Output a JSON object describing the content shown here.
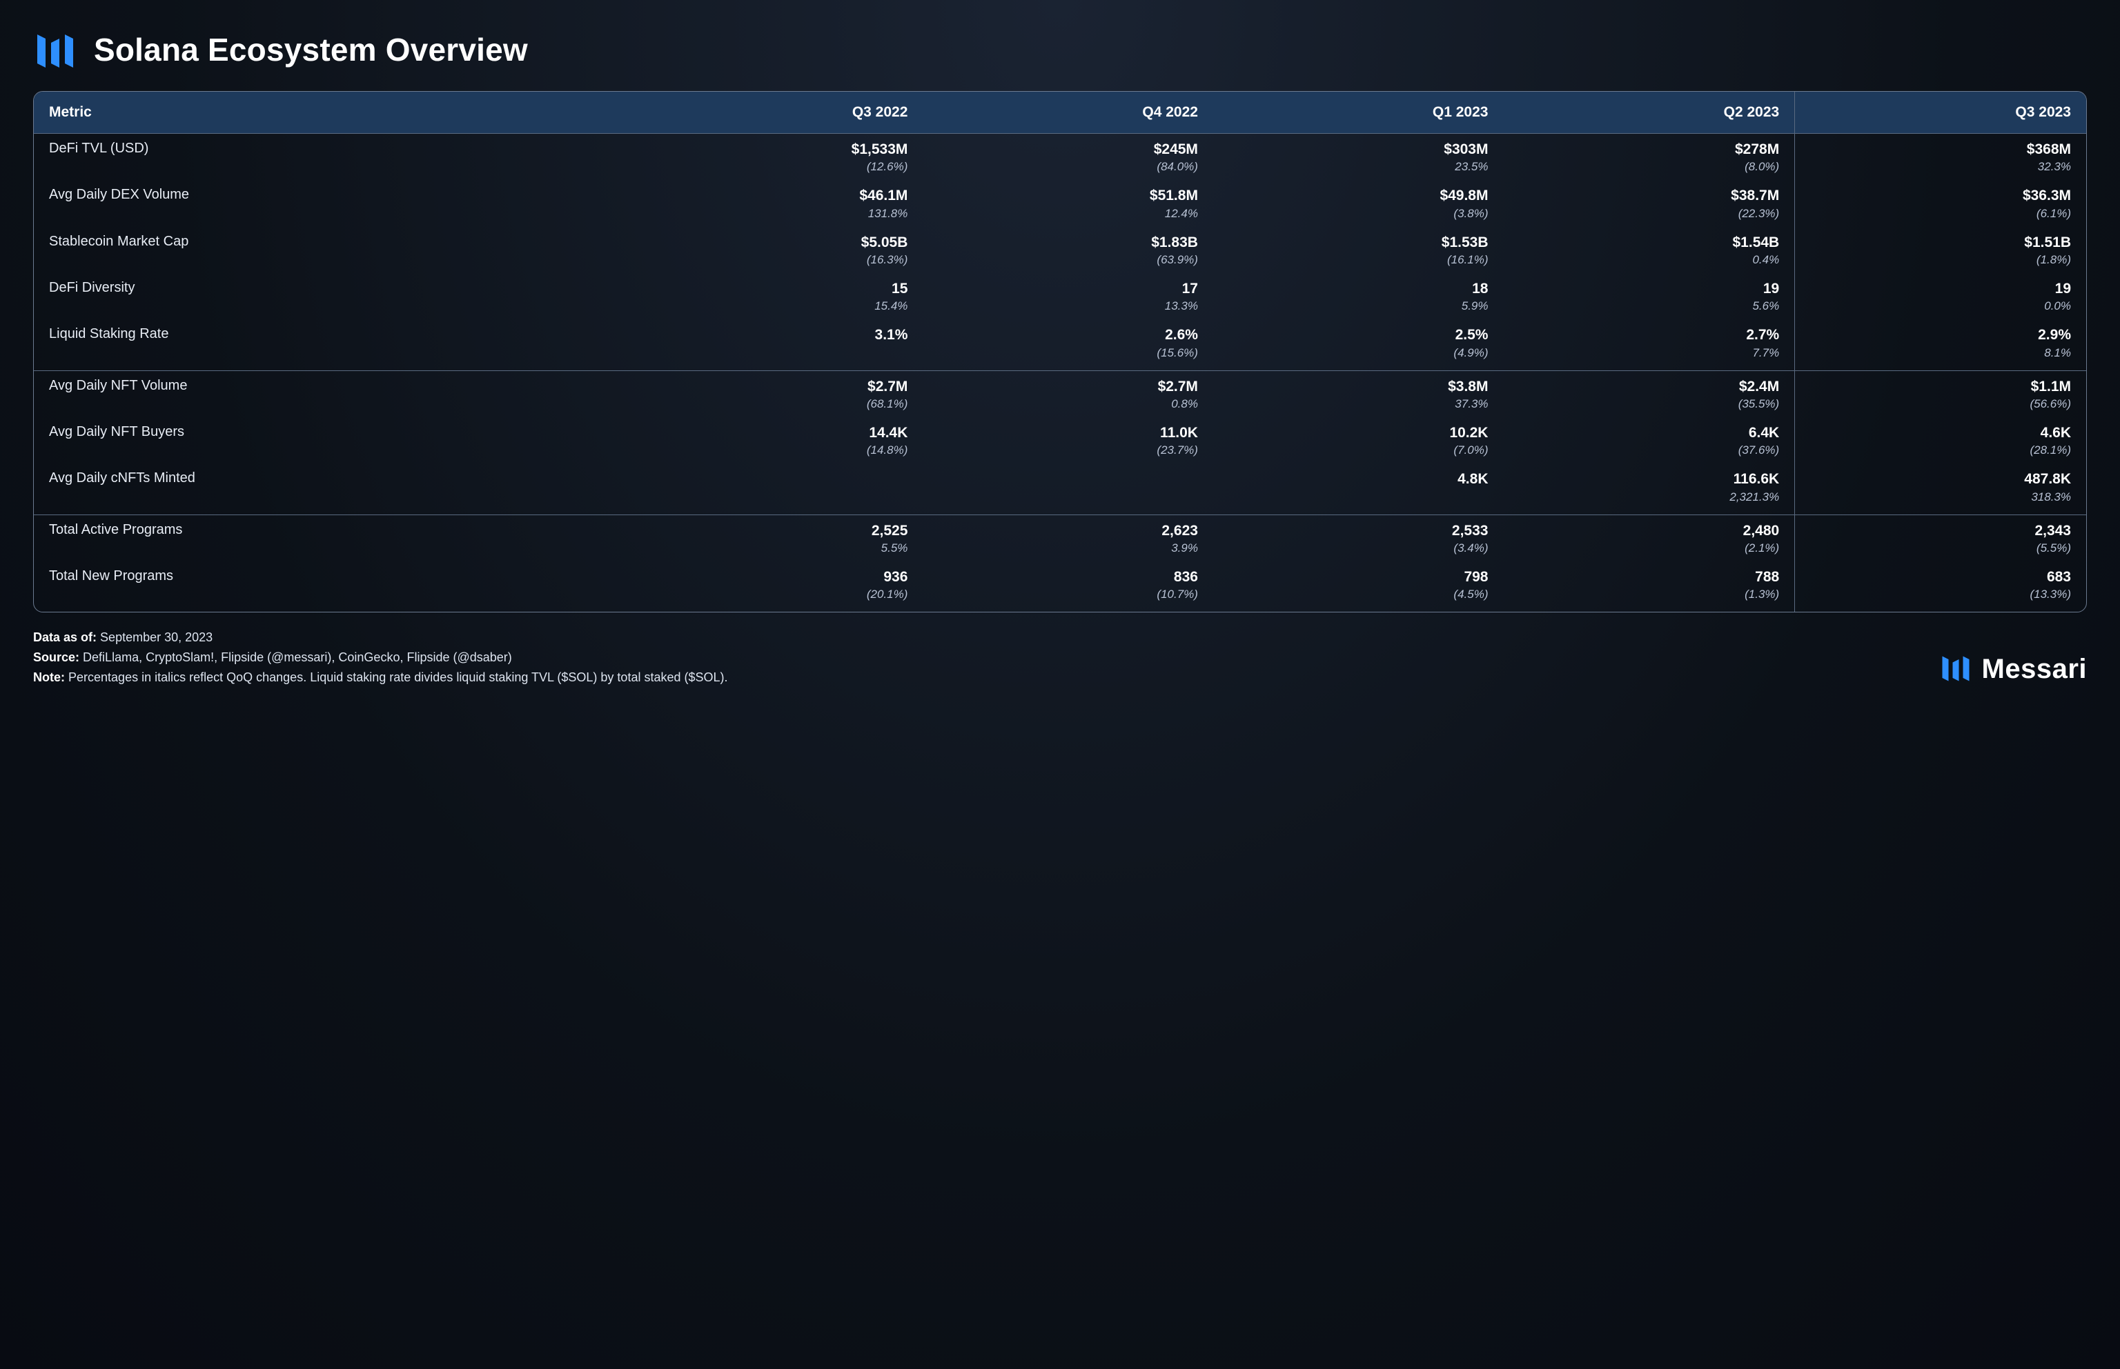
{
  "title": "Solana Ecosystem Overview",
  "brand_name": "Messari",
  "colors": {
    "background_top": "#1a2332",
    "background_bottom": "#080b12",
    "header_bg": "#1e3a5c",
    "border": "#6b7a90",
    "text_primary": "#ffffff",
    "text_secondary": "#b8c2d4",
    "accent": "#2e8fff"
  },
  "typography": {
    "title_size_pt": 34,
    "header_size_pt": 16,
    "body_size_pt": 15,
    "sub_size_pt": 13
  },
  "table": {
    "type": "table",
    "columns": [
      "Metric",
      "Q3 2022",
      "Q4 2022",
      "Q1 2023",
      "Q2 2023",
      "Q3 2023"
    ],
    "sections": [
      {
        "rows": [
          {
            "metric": "DeFi TVL (USD)",
            "values": [
              "$1,533M",
              "$245M",
              "$303M",
              "$278M",
              "$368M"
            ],
            "subs": [
              "(12.6%)",
              "(84.0%)",
              "23.5%",
              "(8.0%)",
              "32.3%"
            ]
          },
          {
            "metric": "Avg Daily DEX Volume",
            "values": [
              "$46.1M",
              "$51.8M",
              "$49.8M",
              "$38.7M",
              "$36.3M"
            ],
            "subs": [
              "131.8%",
              "12.4%",
              "(3.8%)",
              "(22.3%)",
              "(6.1%)"
            ]
          },
          {
            "metric": "Stablecoin Market Cap",
            "values": [
              "$5.05B",
              "$1.83B",
              "$1.53B",
              "$1.54B",
              "$1.51B"
            ],
            "subs": [
              "(16.3%)",
              "(63.9%)",
              "(16.1%)",
              "0.4%",
              "(1.8%)"
            ]
          },
          {
            "metric": "DeFi Diversity",
            "values": [
              "15",
              "17",
              "18",
              "19",
              "19"
            ],
            "subs": [
              "15.4%",
              "13.3%",
              "5.9%",
              "5.6%",
              "0.0%"
            ]
          },
          {
            "metric": "Liquid Staking Rate",
            "values": [
              "3.1%",
              "2.6%",
              "2.5%",
              "2.7%",
              "2.9%"
            ],
            "subs": [
              "",
              "(15.6%)",
              "(4.9%)",
              "7.7%",
              "8.1%"
            ]
          }
        ]
      },
      {
        "rows": [
          {
            "metric": "Avg Daily NFT Volume",
            "values": [
              "$2.7M",
              "$2.7M",
              "$3.8M",
              "$2.4M",
              "$1.1M"
            ],
            "subs": [
              "(68.1%)",
              "0.8%",
              "37.3%",
              "(35.5%)",
              "(56.6%)"
            ]
          },
          {
            "metric": "Avg Daily NFT Buyers",
            "values": [
              "14.4K",
              "11.0K",
              "10.2K",
              "6.4K",
              "4.6K"
            ],
            "subs": [
              "(14.8%)",
              "(23.7%)",
              "(7.0%)",
              "(37.6%)",
              "(28.1%)"
            ]
          },
          {
            "metric": "Avg Daily cNFTs Minted",
            "values": [
              "",
              "",
              "4.8K",
              "116.6K",
              "487.8K"
            ],
            "subs": [
              "",
              "",
              "",
              "2,321.3%",
              "318.3%"
            ]
          }
        ]
      },
      {
        "rows": [
          {
            "metric": "Total Active Programs",
            "values": [
              "2,525",
              "2,623",
              "2,533",
              "2,480",
              "2,343"
            ],
            "subs": [
              "5.5%",
              "3.9%",
              "(3.4%)",
              "(2.1%)",
              "(5.5%)"
            ]
          },
          {
            "metric": "Total New Programs",
            "values": [
              "936",
              "836",
              "798",
              "788",
              "683"
            ],
            "subs": [
              "(20.1%)",
              "(10.7%)",
              "(4.5%)",
              "(1.3%)",
              "(13.3%)"
            ]
          }
        ]
      }
    ]
  },
  "footer": {
    "data_as_of_label": "Data as of:",
    "data_as_of": "September 30, 2023",
    "source_label": "Source:",
    "source": "DefiLlama, CryptoSlam!, Flipside (@messari), CoinGecko, Flipside (@dsaber)",
    "note_label": "Note:",
    "note": "Percentages in italics reflect QoQ changes. Liquid staking rate divides liquid staking TVL ($SOL) by total staked ($SOL)."
  }
}
